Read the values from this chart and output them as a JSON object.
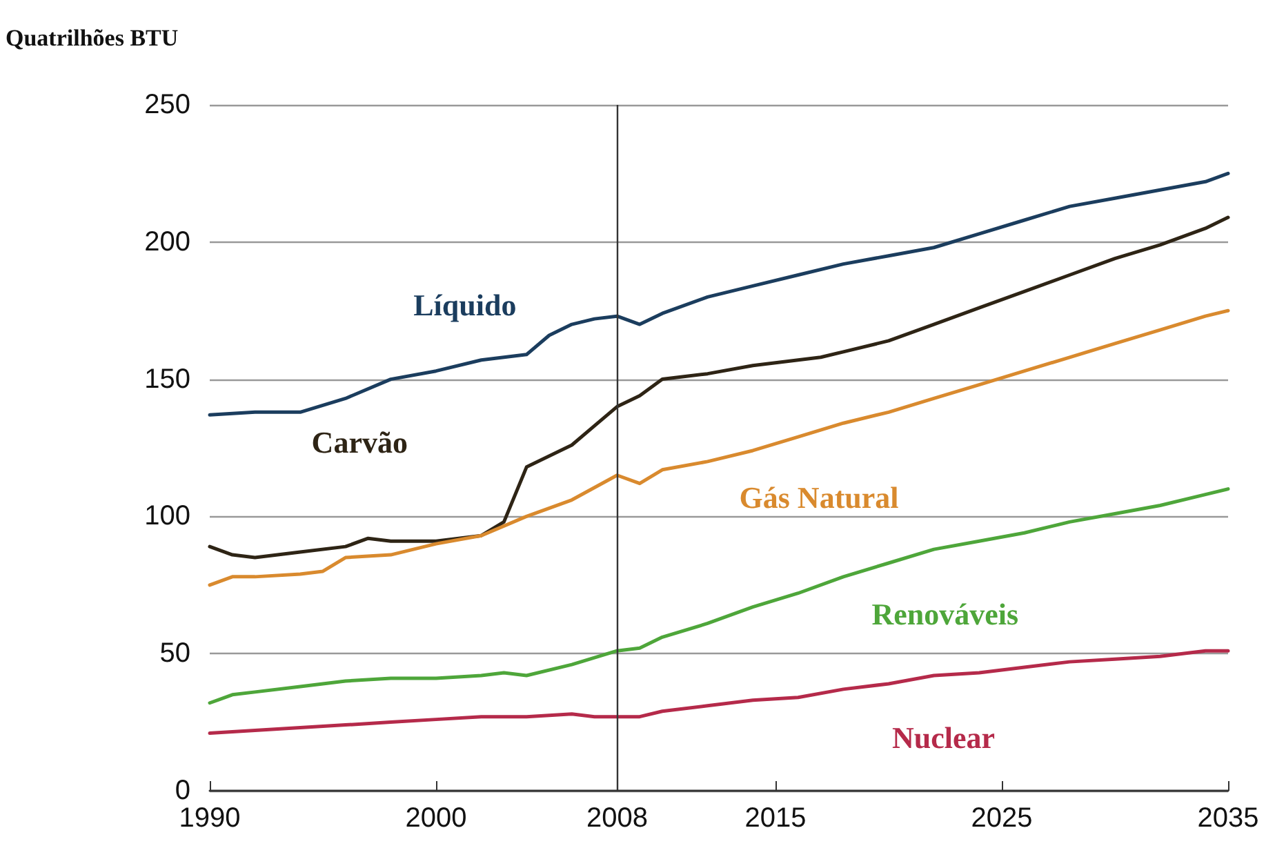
{
  "chart_data": {
    "type": "line",
    "ylabel": "Quatrilhões BTU",
    "xlim": [
      1990,
      2035
    ],
    "xticks": [
      1990,
      2000,
      2008,
      2015,
      2025,
      2035
    ],
    "ylim": [
      0,
      250
    ],
    "yticks": [
      0,
      50,
      100,
      150,
      200,
      250
    ],
    "grid": "y",
    "legend": false,
    "marker": "none",
    "line_style": "solid",
    "ref_lines": [
      {
        "axis": "x",
        "value": 2008,
        "color": "#333333"
      }
    ],
    "series": [
      {
        "name": "Líquido",
        "color": "#1b3d5e",
        "x": [
          1990,
          1992,
          1994,
          1996,
          1998,
          2000,
          2002,
          2004,
          2005,
          2006,
          2007,
          2008,
          2009,
          2010,
          2012,
          2014,
          2016,
          2018,
          2020,
          2022,
          2024,
          2026,
          2028,
          2030,
          2032,
          2034,
          2035
        ],
        "values": [
          137,
          138,
          138,
          143,
          150,
          153,
          157,
          159,
          166,
          170,
          172,
          173,
          170,
          174,
          180,
          184,
          188,
          192,
          195,
          198,
          203,
          208,
          213,
          216,
          219,
          222,
          225
        ]
      },
      {
        "name": "Carvão",
        "color": "#2e2415",
        "x": [
          1990,
          1991,
          1992,
          1994,
          1996,
          1997,
          1998,
          2000,
          2001,
          2002,
          2003,
          2004,
          2006,
          2007,
          2008,
          2009,
          2010,
          2012,
          2014,
          2016,
          2017,
          2018,
          2020,
          2022,
          2024,
          2026,
          2028,
          2030,
          2032,
          2034,
          2035
        ],
        "values": [
          89,
          86,
          85,
          87,
          89,
          92,
          91,
          91,
          92,
          93,
          98,
          118,
          126,
          133,
          140,
          144,
          150,
          152,
          155,
          157,
          158,
          160,
          164,
          170,
          176,
          182,
          188,
          194,
          199,
          205,
          209
        ]
      },
      {
        "name": "Gás Natural",
        "color": "#d98a2e",
        "x": [
          1990,
          1991,
          1992,
          1994,
          1995,
          1996,
          1998,
          2000,
          2002,
          2004,
          2006,
          2008,
          2009,
          2010,
          2012,
          2014,
          2016,
          2018,
          2020,
          2022,
          2024,
          2026,
          2028,
          2030,
          2032,
          2034,
          2035
        ],
        "values": [
          75,
          78,
          78,
          79,
          80,
          85,
          86,
          90,
          93,
          100,
          106,
          115,
          112,
          117,
          120,
          124,
          129,
          134,
          138,
          143,
          148,
          153,
          158,
          163,
          168,
          173,
          175
        ]
      },
      {
        "name": "Renováveis",
        "color": "#4ea63a",
        "x": [
          1990,
          1991,
          1992,
          1994,
          1996,
          1998,
          2000,
          2002,
          2003,
          2004,
          2006,
          2008,
          2009,
          2010,
          2012,
          2014,
          2016,
          2018,
          2020,
          2022,
          2024,
          2026,
          2028,
          2030,
          2032,
          2034,
          2035
        ],
        "values": [
          32,
          35,
          36,
          38,
          40,
          41,
          41,
          42,
          43,
          42,
          46,
          51,
          52,
          56,
          61,
          67,
          72,
          78,
          83,
          88,
          91,
          94,
          98,
          101,
          104,
          108,
          110
        ]
      },
      {
        "name": "Nuclear",
        "color": "#b52a4a",
        "x": [
          1990,
          1992,
          1994,
          1996,
          1998,
          2000,
          2002,
          2004,
          2006,
          2007,
          2008,
          2009,
          2010,
          2012,
          2014,
          2016,
          2018,
          2020,
          2022,
          2024,
          2026,
          2028,
          2030,
          2032,
          2034,
          2035
        ],
        "values": [
          21,
          22,
          23,
          24,
          25,
          26,
          27,
          27,
          28,
          27,
          27,
          27,
          29,
          31,
          33,
          34,
          37,
          39,
          42,
          43,
          45,
          47,
          48,
          49,
          51,
          51
        ]
      }
    ]
  }
}
